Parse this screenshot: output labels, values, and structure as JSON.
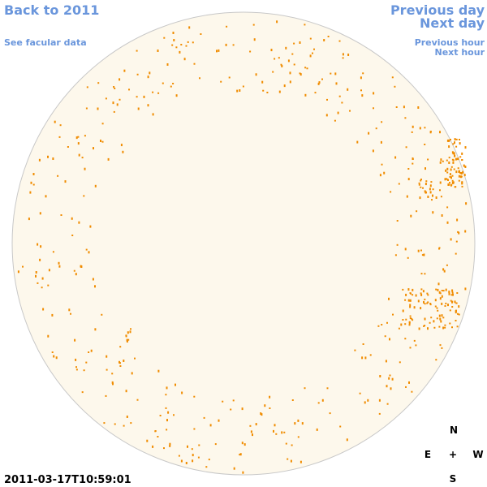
{
  "nav": {
    "back": "Back to 2011",
    "facular": "See facular data",
    "previous_day": "Previous day",
    "next_day": "Next day",
    "previous_hour": "Previous hour",
    "next_hour": "Next hour"
  },
  "timestamp": "2011-03-17T10:59:01",
  "compass": {
    "north": "N",
    "east": "E",
    "center": "+",
    "west": "W",
    "south": "S"
  }
}
